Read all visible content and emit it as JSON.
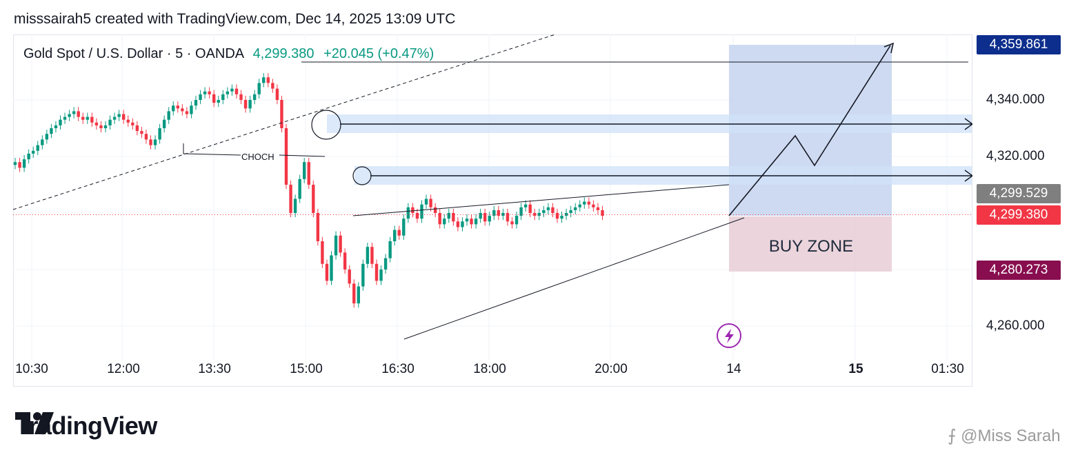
{
  "header": {
    "caption": "misssairah5 created with TradingView.com, Dec 14, 2025 13:09 UTC"
  },
  "symbol": {
    "name": "Gold Spot / U.S. Dollar · 5 · OANDA",
    "price": "4,299.380",
    "change": "+20.045 (+0.47%)"
  },
  "annotations": {
    "choch": "CHOCH",
    "buy_zone": "BUY ZONE"
  },
  "price_labels": [
    {
      "text": "4,359.861",
      "color": "#0d2e8c"
    },
    {
      "text": "4,299.529",
      "color": "#7f7f7f"
    },
    {
      "text": "4,299.380",
      "color": "#f23645"
    },
    {
      "text": "4,280.273",
      "color": "#880e4f"
    }
  ],
  "price_axis": [
    "4,340.000",
    "4,320.000",
    "4,260.000"
  ],
  "time_axis": [
    "10:30",
    "12:00",
    "13:30",
    "15:00",
    "16:30",
    "18:00",
    "20:00",
    "14",
    "15",
    "01:30"
  ],
  "footer": {
    "brand": "TradingView",
    "watermark": "⨍ @Miss Sarah"
  },
  "colors": {
    "up": "#089981",
    "down": "#f23645",
    "zone_blue": "#c5d4ee",
    "zone_pink": "#e8ccd6",
    "band": "#cfe2f8"
  },
  "icons": [
    "lightning-icon",
    "tradingview-logo-icon"
  ],
  "chart_data": {
    "type": "candlestick",
    "title": "Gold Spot / U.S. Dollar · 5 · OANDA",
    "ylim": [
      4252,
      4370
    ],
    "last_price": 4299.38,
    "grid": true,
    "x_ticks": [
      "10:30",
      "12:00",
      "13:30",
      "15:00",
      "16:30",
      "18:00",
      "20:00",
      "14",
      "15",
      "01:30"
    ],
    "series": [
      {
        "name": "close",
        "values": [
          4318,
          4316,
          4319,
          4321,
          4322,
          4324,
          4326,
          4328,
          4330,
          4331,
          4333,
          4334,
          4335,
          4336,
          4334,
          4333,
          4334,
          4332,
          4331,
          4330,
          4331,
          4333,
          4334,
          4335,
          4333,
          4332,
          4331,
          4329,
          4328,
          4326,
          4324,
          4326,
          4330,
          4333,
          4336,
          4338,
          4337,
          4336,
          4335,
          4338,
          4340,
          4342,
          4343,
          4342,
          4339,
          4340,
          4342,
          4343,
          4344,
          4342,
          4340,
          4337,
          4340,
          4342,
          4346,
          4348,
          4346,
          4344,
          4340,
          4330,
          4310,
          4300,
          4305,
          4312,
          4318,
          4310,
          4300,
          4290,
          4282,
          4276,
          4285,
          4292,
          4286,
          4280,
          4275,
          4268,
          4274,
          4282,
          4288,
          4282,
          4276,
          4280,
          4284,
          4290,
          4294,
          4292,
          4298,
          4302,
          4300,
          4298,
          4303,
          4305,
          4302,
          4300,
          4296,
          4298,
          4300,
          4297,
          4295,
          4297,
          4298,
          4296,
          4298,
          4300,
          4297,
          4299,
          4301,
          4299,
          4300,
          4297,
          4296,
          4299,
          4302,
          4303,
          4300,
          4299,
          4300,
          4301,
          4302,
          4300,
          4298,
          4299,
          4300,
          4301,
          4302,
          4303,
          4304,
          4303,
          4302,
          4301,
          4299
        ]
      }
    ],
    "levels": [
      4359.861,
      4331.5,
      4314.0,
      4299.529,
      4299.38,
      4280.273
    ]
  }
}
